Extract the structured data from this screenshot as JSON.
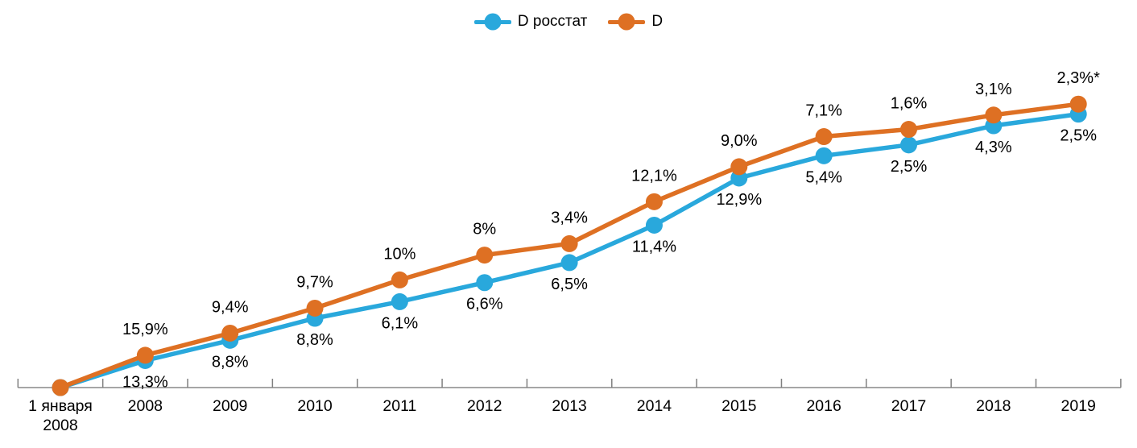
{
  "colors": {
    "series_blue": "#29A8DC",
    "series_orange": "#DE7023",
    "axis_line": "#A6A6A6",
    "tick_mark": "#808080",
    "label_text": "#000000"
  },
  "legend": {
    "position": "top-center"
  },
  "chart_data": {
    "type": "line",
    "title": "",
    "xlabel": "",
    "ylabel": "",
    "grid": "off",
    "legend_position": "top-center",
    "categories": [
      "1 января\n2008",
      "2008",
      "2009",
      "2010",
      "2011",
      "2012",
      "2013",
      "2014",
      "2015",
      "2016",
      "2017",
      "2018",
      "2019"
    ],
    "value_encoding": "lines plot the compounded cumulative index built from yearly percent changes; baseline 0 at first category",
    "ylim": [
      0,
      145
    ],
    "series": [
      {
        "name": "D росстат",
        "color": "#29A8DC",
        "label_position": "below",
        "yoy_percent": [
          0,
          13.3,
          8.8,
          8.8,
          6.1,
          6.6,
          6.5,
          11.4,
          12.9,
          5.4,
          2.5,
          4.3,
          2.5
        ],
        "point_labels": [
          "",
          "13,3%",
          "8,8%",
          "8,8%",
          "6,1%",
          "6,6%",
          "6,5%",
          "11,4%",
          "12,9%",
          "5,4%",
          "2,5%",
          "4,3%",
          "2,5%"
        ]
      },
      {
        "name": "D",
        "color": "#DE7023",
        "label_position": "above",
        "yoy_percent": [
          0,
          15.9,
          9.4,
          9.7,
          10,
          8,
          3.4,
          12.1,
          9.0,
          7.1,
          1.6,
          3.1,
          2.3
        ],
        "point_labels": [
          "",
          "15,9%",
          "9,4%",
          "9,7%",
          "10%",
          "8%",
          "3,4%",
          "12,1%",
          "9,0%",
          "7,1%",
          "1,6%",
          "3,1%",
          "2,3%*"
        ]
      }
    ]
  }
}
